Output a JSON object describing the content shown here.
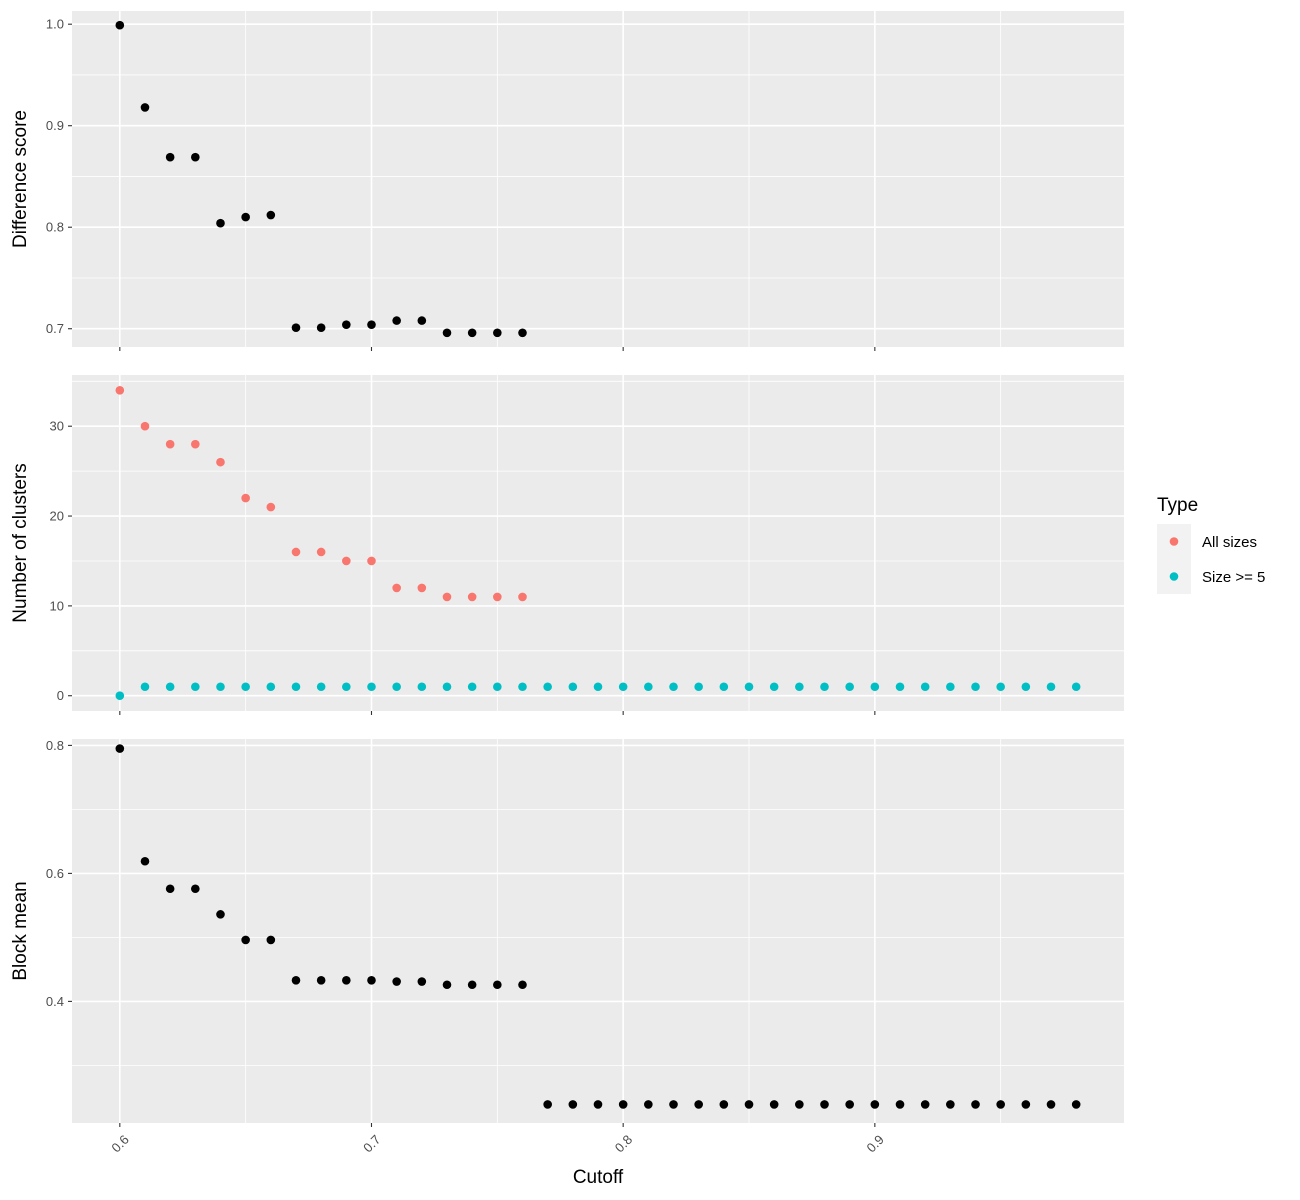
{
  "chart_data": {
    "type": "scatter",
    "xlabel": "Cutoff",
    "x_ticks": [
      0.6,
      0.7,
      0.8,
      0.9
    ],
    "x_tick_labels": [
      "0.6",
      "0.7",
      "0.8",
      "0.9"
    ],
    "xlim": [
      0.581,
      0.999
    ],
    "grid": true,
    "legend": {
      "title": "Type",
      "position": "right",
      "entries": [
        {
          "label": "All sizes",
          "color": "#F8766D"
        },
        {
          "label": "Size >= 5",
          "color": "#00BFC4"
        }
      ]
    },
    "panels": [
      {
        "ylabel": "Difference score",
        "ylim": [
          0.682,
          1.013
        ],
        "y_ticks": [
          0.7,
          0.8,
          0.9,
          1.0
        ],
        "y_tick_labels": [
          "0.7",
          "0.8",
          "0.9",
          "1.0"
        ],
        "series": [
          {
            "color": "#000000",
            "x": [
              0.6,
              0.61,
              0.62,
              0.63,
              0.64,
              0.65,
              0.66,
              0.67,
              0.68,
              0.69,
              0.7,
              0.71,
              0.72,
              0.73,
              0.74,
              0.75,
              0.76
            ],
            "y": [
              0.999,
              0.918,
              0.869,
              0.869,
              0.804,
              0.81,
              0.812,
              0.701,
              0.701,
              0.704,
              0.704,
              0.708,
              0.708,
              0.696,
              0.696,
              0.696,
              0.696
            ]
          }
        ]
      },
      {
        "ylabel": "Number of clusters",
        "ylim": [
          -1.7,
          35.7
        ],
        "y_ticks": [
          0,
          10,
          20,
          30
        ],
        "y_tick_labels": [
          "0",
          "10",
          "20",
          "30"
        ],
        "series": [
          {
            "name": "All sizes",
            "color": "#F8766D",
            "x": [
              0.6,
              0.61,
              0.62,
              0.63,
              0.64,
              0.65,
              0.66,
              0.67,
              0.68,
              0.69,
              0.7,
              0.71,
              0.72,
              0.73,
              0.74,
              0.75,
              0.76
            ],
            "y": [
              34,
              30,
              28,
              28,
              26,
              22,
              21,
              16,
              16,
              15,
              15,
              12,
              12,
              11,
              11,
              11,
              11
            ]
          },
          {
            "name": "Size >= 5",
            "color": "#00BFC4",
            "x": [
              0.6,
              0.61,
              0.62,
              0.63,
              0.64,
              0.65,
              0.66,
              0.67,
              0.68,
              0.69,
              0.7,
              0.71,
              0.72,
              0.73,
              0.74,
              0.75,
              0.76,
              0.77,
              0.78,
              0.79,
              0.8,
              0.81,
              0.82,
              0.83,
              0.84,
              0.85,
              0.86,
              0.87,
              0.88,
              0.89,
              0.9,
              0.91,
              0.92,
              0.93,
              0.94,
              0.95,
              0.96,
              0.97,
              0.98
            ],
            "y": [
              0,
              1,
              1,
              1,
              1,
              1,
              1,
              1,
              1,
              1,
              1,
              1,
              1,
              1,
              1,
              1,
              1,
              1,
              1,
              1,
              1,
              1,
              1,
              1,
              1,
              1,
              1,
              1,
              1,
              1,
              1,
              1,
              1,
              1,
              1,
              1,
              1,
              1,
              1
            ]
          }
        ]
      },
      {
        "ylabel": "Block mean",
        "ylim": [
          0.21,
          0.81
        ],
        "y_ticks": [
          0.4,
          0.6,
          0.8
        ],
        "y_tick_labels": [
          "0.4",
          "0.6",
          "0.8"
        ],
        "series": [
          {
            "color": "#000000",
            "x": [
              0.6,
              0.61,
              0.62,
              0.63,
              0.64,
              0.65,
              0.66,
              0.67,
              0.68,
              0.69,
              0.7,
              0.71,
              0.72,
              0.73,
              0.74,
              0.75,
              0.76,
              0.77,
              0.78,
              0.79,
              0.8,
              0.81,
              0.82,
              0.83,
              0.84,
              0.85,
              0.86,
              0.87,
              0.88,
              0.89,
              0.9,
              0.91,
              0.92,
              0.93,
              0.94,
              0.95,
              0.96,
              0.97,
              0.98
            ],
            "y": [
              0.795,
              0.619,
              0.576,
              0.576,
              0.536,
              0.496,
              0.496,
              0.433,
              0.433,
              0.433,
              0.433,
              0.431,
              0.431,
              0.426,
              0.426,
              0.426,
              0.426,
              0.239,
              0.239,
              0.239,
              0.239,
              0.239,
              0.239,
              0.239,
              0.239,
              0.239,
              0.239,
              0.239,
              0.239,
              0.239,
              0.239,
              0.239,
              0.239,
              0.239,
              0.239,
              0.239,
              0.239,
              0.239,
              0.239
            ]
          }
        ]
      }
    ]
  }
}
